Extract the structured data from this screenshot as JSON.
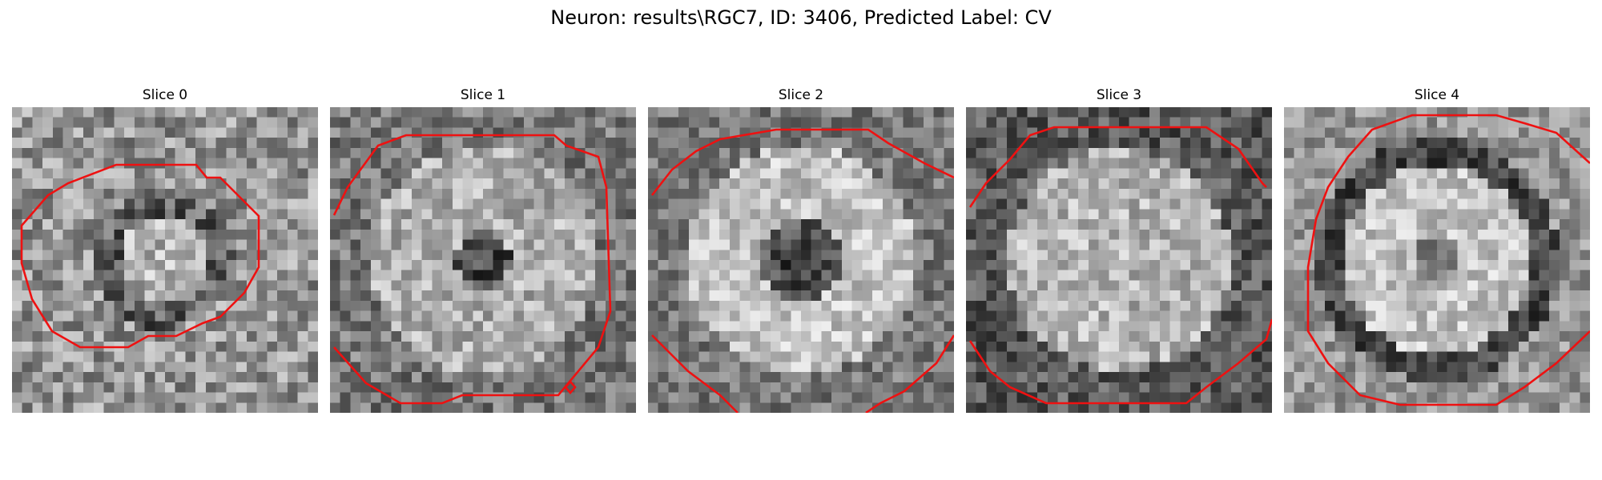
{
  "figure": {
    "title": "Neuron: results\\RGC7, ID: 3406, Predicted Label: CV"
  },
  "slices": [
    {
      "title": "Slice 0"
    },
    {
      "title": "Slice 1"
    },
    {
      "title": "Slice 2"
    },
    {
      "title": "Slice 3"
    },
    {
      "title": "Slice 4"
    }
  ],
  "colors": {
    "contour": "#ee1111",
    "background": "#ffffff"
  }
}
